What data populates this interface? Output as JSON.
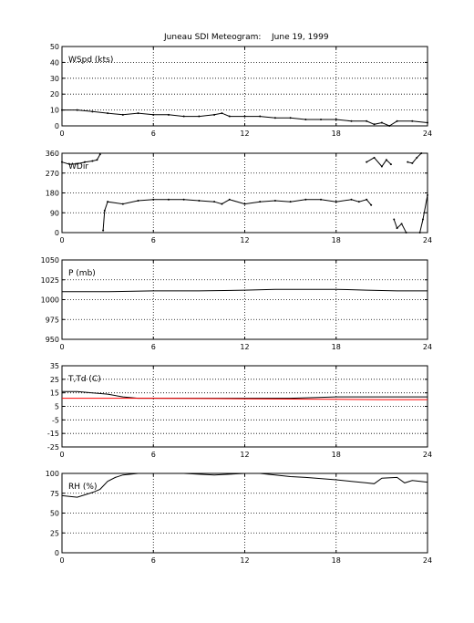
{
  "figure": {
    "title": "Juneau SDI Meteogram:",
    "date": "June 19, 1999"
  },
  "chart_data": [
    {
      "type": "line",
      "label": "WSpd (kts)",
      "xlim": [
        0,
        24
      ],
      "ylim": [
        0,
        50
      ],
      "xticks": [
        0,
        6,
        12,
        18,
        24
      ],
      "yticks": [
        0,
        10,
        20,
        30,
        40,
        50
      ],
      "grid": true,
      "series": [
        {
          "color": "#000000",
          "dots": true,
          "x": [
            0,
            1,
            2,
            3,
            4,
            5,
            6,
            7,
            8,
            9,
            10,
            10.5,
            11,
            12,
            13,
            14,
            15,
            16,
            17,
            18,
            19,
            20,
            20.5,
            21,
            21.5,
            22,
            23,
            24
          ],
          "y": [
            10,
            10,
            9,
            8,
            7,
            8,
            7,
            7,
            6,
            6,
            7,
            8,
            6,
            6,
            6,
            5,
            5,
            4,
            4,
            4,
            3,
            3,
            1,
            2,
            0,
            3,
            3,
            2
          ]
        }
      ]
    },
    {
      "type": "line",
      "label": "WDir",
      "xlim": [
        0,
        24
      ],
      "ylim": [
        0,
        360
      ],
      "xticks": [
        0,
        6,
        12,
        18,
        24
      ],
      "yticks": [
        0,
        90,
        180,
        270,
        360
      ],
      "grid": true,
      "series": [
        {
          "color": "#000000",
          "dots": true,
          "x": [
            0,
            0.5,
            1,
            1.5,
            2,
            2.3,
            2.5
          ],
          "y": [
            320,
            310,
            312,
            320,
            325,
            330,
            355
          ]
        },
        {
          "color": "#000000",
          "dots": true,
          "x": [
            2.7,
            2.8,
            3,
            4,
            5,
            6,
            7,
            8,
            9,
            10,
            10.5,
            11,
            12,
            13,
            14,
            15,
            16,
            17,
            18,
            19,
            19.5,
            20,
            20.3
          ],
          "y": [
            10,
            100,
            140,
            130,
            145,
            150,
            150,
            150,
            145,
            140,
            130,
            150,
            130,
            140,
            145,
            140,
            150,
            150,
            140,
            150,
            140,
            150,
            125
          ]
        },
        {
          "color": "#000000",
          "dots": true,
          "x": [
            20,
            20.5,
            21,
            21.3,
            21.6
          ],
          "y": [
            320,
            340,
            300,
            330,
            310
          ]
        },
        {
          "color": "#000000",
          "dots": true,
          "x": [
            21.8,
            22,
            22.3,
            22.6
          ],
          "y": [
            60,
            20,
            40,
            0
          ]
        },
        {
          "color": "#000000",
          "dots": true,
          "x": [
            22.7,
            23,
            23.3,
            23.6
          ],
          "y": [
            320,
            315,
            340,
            360
          ]
        },
        {
          "color": "#000000",
          "dots": true,
          "x": [
            23.5,
            23.7,
            24
          ],
          "y": [
            0,
            60,
            170
          ]
        }
      ]
    },
    {
      "type": "line",
      "label": "P (mb)",
      "xlim": [
        0,
        24
      ],
      "ylim": [
        950,
        1050
      ],
      "xticks": [
        0,
        6,
        12,
        18,
        24
      ],
      "yticks": [
        950,
        975,
        1000,
        1025,
        1050
      ],
      "grid": true,
      "series": [
        {
          "color": "#000000",
          "dots": false,
          "x": [
            0,
            3,
            6,
            9,
            12,
            14,
            16,
            18,
            20,
            22,
            24
          ],
          "y": [
            1010,
            1010,
            1011,
            1011,
            1012,
            1013,
            1013,
            1013,
            1012,
            1011,
            1011
          ]
        }
      ]
    },
    {
      "type": "line",
      "label": "T,Td (C)",
      "xlim": [
        0,
        24
      ],
      "ylim": [
        -25,
        35
      ],
      "xticks": [
        0,
        6,
        12,
        18,
        24
      ],
      "yticks": [
        -25,
        -15,
        -5,
        5,
        15,
        25,
        35
      ],
      "grid": true,
      "series": [
        {
          "color": "#000000",
          "dots": false,
          "x": [
            0,
            1,
            2,
            3,
            4,
            5,
            6,
            9,
            12,
            15,
            18,
            21,
            24
          ],
          "y": [
            16,
            16,
            15,
            14,
            12,
            11,
            11,
            11,
            11,
            11,
            12,
            12,
            12
          ]
        },
        {
          "color": "#ff0000",
          "dots": false,
          "x": [
            0,
            3,
            6,
            9,
            12,
            15,
            18,
            21,
            24
          ],
          "y": [
            11,
            11,
            11,
            10.8,
            10.6,
            10.4,
            10.2,
            10,
            10
          ]
        }
      ]
    },
    {
      "type": "line",
      "label": "RH (%)",
      "xlim": [
        0,
        24
      ],
      "ylim": [
        0,
        100
      ],
      "xticks": [
        0,
        6,
        12,
        18,
        24
      ],
      "yticks": [
        0,
        25,
        50,
        75,
        100
      ],
      "grid": true,
      "series": [
        {
          "color": "#000000",
          "dots": false,
          "x": [
            0,
            1,
            2,
            2.5,
            3,
            3.5,
            4,
            5,
            6,
            8,
            10,
            11,
            12,
            13,
            14,
            15,
            16,
            18,
            19,
            20,
            20.5,
            21,
            22,
            22.5,
            23,
            24
          ],
          "y": [
            72,
            70,
            76,
            80,
            90,
            95,
            98,
            100,
            100,
            100,
            98,
            99,
            100,
            100,
            98,
            96,
            95,
            92,
            90,
            88,
            87,
            94,
            95,
            88,
            91,
            89
          ]
        }
      ]
    }
  ]
}
